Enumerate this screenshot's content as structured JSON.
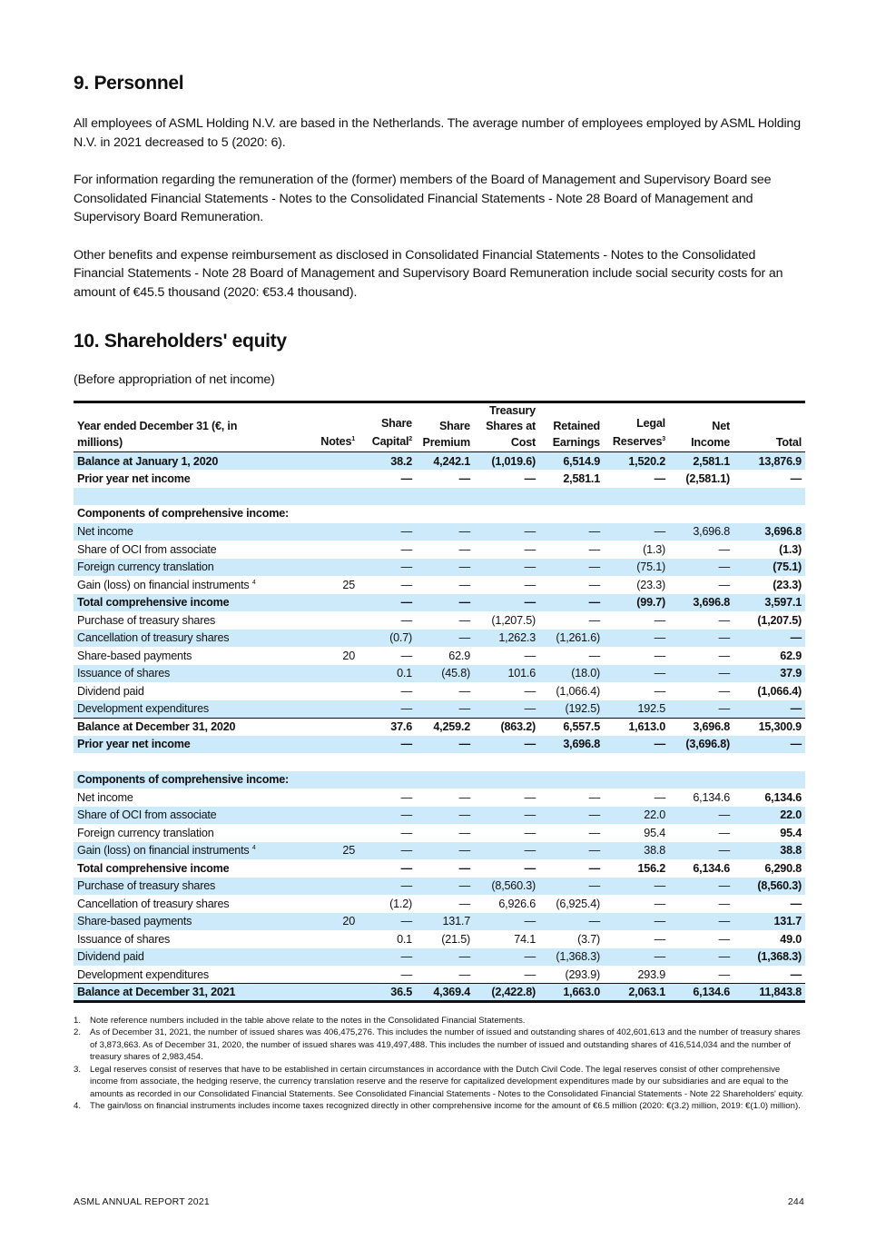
{
  "section9": {
    "title": "9. Personnel",
    "paragraphs": [
      "All employees of ASML Holding N.V. are based in the Netherlands. The average number of employees employed by ASML Holding N.V. in 2021 decreased to 5 (2020: 6).",
      "For information regarding the remuneration of the (former) members of the Board of Management and Supervisory Board see Consolidated Financial Statements - Notes to the Consolidated Financial Statements - Note 28 Board of Management and Supervisory Board Remuneration.",
      "Other benefits and expense reimbursement as disclosed in Consolidated Financial Statements - Notes to the Consolidated Financial Statements - Note 28 Board of Management and Supervisory Board Remuneration include social security costs for an amount of €45.5 thousand (2020: €53.4 thousand)."
    ]
  },
  "section10": {
    "title": "10. Shareholders' equity",
    "subtitle": "(Before appropriation of net income)"
  },
  "table": {
    "headers": {
      "label": "Year ended December 31 (€, in millions)",
      "notes": "Notes",
      "notes_sup": "1",
      "share_capital": "Share Capital",
      "share_capital_sup": "2",
      "share_premium": "Share Premium",
      "treasury": "Treasury Shares at Cost",
      "retained": "Retained Earnings",
      "legal": "Legal Reserves",
      "legal_sup": "3",
      "net_income": "Net Income",
      "total": "Total"
    },
    "rows": [
      {
        "type": "b",
        "label": "Balance at January 1, 2020",
        "notes": "",
        "cells": [
          "38.2",
          "4,242.1",
          "(1,019.6)",
          "6,514.9",
          "1,520.2",
          "2,581.1",
          "13,876.9"
        ]
      },
      {
        "type": "b",
        "label": "Prior year net income",
        "notes": "",
        "cells": [
          "—",
          "—",
          "—",
          "2,581.1",
          "—",
          "(2,581.1)",
          "—"
        ]
      },
      {
        "type": "blank",
        "label": "",
        "notes": "",
        "cells": [
          "",
          "",
          "",
          "",
          "",
          "",
          ""
        ]
      },
      {
        "type": "h",
        "label": "Components of comprehensive income:",
        "notes": "",
        "cells": [
          "",
          "",
          "",
          "",
          "",
          "",
          ""
        ]
      },
      {
        "type": "n",
        "label": "Net income",
        "notes": "",
        "cells": [
          "—",
          "—",
          "—",
          "—",
          "—",
          "3,696.8",
          "3,696.8"
        ]
      },
      {
        "type": "n",
        "label": "Share of OCI from associate",
        "notes": "",
        "cells": [
          "—",
          "—",
          "—",
          "—",
          "(1.3)",
          "—",
          "(1.3)"
        ]
      },
      {
        "type": "n",
        "label": "Foreign currency translation",
        "notes": "",
        "cells": [
          "—",
          "—",
          "—",
          "—",
          "(75.1)",
          "—",
          "(75.1)"
        ]
      },
      {
        "type": "n",
        "label": "Gain (loss) on financial instruments",
        "sup": "4",
        "notes": "25",
        "cells": [
          "—",
          "—",
          "—",
          "—",
          "(23.3)",
          "—",
          "(23.3)"
        ]
      },
      {
        "type": "b",
        "label": "Total comprehensive income",
        "notes": "",
        "cells": [
          "—",
          "—",
          "—",
          "—",
          "(99.7)",
          "3,696.8",
          "3,597.1"
        ]
      },
      {
        "type": "n",
        "label": "Purchase of treasury shares",
        "notes": "",
        "cells": [
          "—",
          "—",
          "(1,207.5)",
          "—",
          "—",
          "—",
          "(1,207.5)"
        ]
      },
      {
        "type": "n",
        "label": "Cancellation of treasury shares",
        "notes": "",
        "cells": [
          "(0.7)",
          "—",
          "1,262.3",
          "(1,261.6)",
          "—",
          "—",
          "—"
        ]
      },
      {
        "type": "n",
        "label": "Share-based payments",
        "notes": "20",
        "cells": [
          "—",
          "62.9",
          "—",
          "—",
          "—",
          "—",
          "62.9"
        ]
      },
      {
        "type": "n",
        "label": "Issuance of shares",
        "notes": "",
        "cells": [
          "0.1",
          "(45.8)",
          "101.6",
          "(18.0)",
          "—",
          "—",
          "37.9"
        ]
      },
      {
        "type": "n",
        "label": "Dividend paid",
        "notes": "",
        "cells": [
          "—",
          "—",
          "—",
          "(1,066.4)",
          "—",
          "—",
          "(1,066.4)"
        ]
      },
      {
        "type": "n",
        "label": "Development expenditures",
        "notes": "",
        "cells": [
          "—",
          "—",
          "—",
          "(192.5)",
          "192.5",
          "—",
          "—"
        ]
      },
      {
        "type": "b top",
        "label": "Balance at December 31, 2020",
        "notes": "",
        "cells": [
          "37.6",
          "4,259.2",
          "(863.2)",
          "6,557.5",
          "1,613.0",
          "3,696.8",
          "15,300.9"
        ]
      },
      {
        "type": "b",
        "label": "Prior year net income",
        "notes": "",
        "cells": [
          "—",
          "—",
          "—",
          "3,696.8",
          "—",
          "(3,696.8)",
          "—"
        ]
      },
      {
        "type": "blank",
        "label": "",
        "notes": "",
        "cells": [
          "",
          "",
          "",
          "",
          "",
          "",
          ""
        ]
      },
      {
        "type": "h",
        "label": "Components of comprehensive income:",
        "notes": "",
        "cells": [
          "",
          "",
          "",
          "",
          "",
          "",
          ""
        ]
      },
      {
        "type": "n",
        "label": "Net income",
        "notes": "",
        "cells": [
          "—",
          "—",
          "—",
          "—",
          "—",
          "6,134.6",
          "6,134.6"
        ]
      },
      {
        "type": "n",
        "label": "Share of OCI from associate",
        "notes": "",
        "cells": [
          "—",
          "—",
          "—",
          "—",
          "22.0",
          "—",
          "22.0"
        ]
      },
      {
        "type": "n",
        "label": "Foreign currency translation",
        "notes": "",
        "cells": [
          "—",
          "—",
          "—",
          "—",
          "95.4",
          "—",
          "95.4"
        ]
      },
      {
        "type": "n",
        "label": "Gain (loss) on financial instruments",
        "sup": "4",
        "notes": "25",
        "cells": [
          "—",
          "—",
          "—",
          "—",
          "38.8",
          "—",
          "38.8"
        ]
      },
      {
        "type": "b",
        "label": "Total comprehensive income",
        "notes": "",
        "cells": [
          "—",
          "—",
          "—",
          "—",
          "156.2",
          "6,134.6",
          "6,290.8"
        ]
      },
      {
        "type": "n",
        "label": "Purchase of treasury shares",
        "notes": "",
        "cells": [
          "—",
          "—",
          "(8,560.3)",
          "—",
          "—",
          "—",
          "(8,560.3)"
        ]
      },
      {
        "type": "n",
        "label": "Cancellation of treasury shares",
        "notes": "",
        "cells": [
          "(1.2)",
          "—",
          "6,926.6",
          "(6,925.4)",
          "—",
          "—",
          "—"
        ]
      },
      {
        "type": "n",
        "label": "Share-based payments",
        "notes": "20",
        "cells": [
          "—",
          "131.7",
          "—",
          "—",
          "—",
          "—",
          "131.7"
        ]
      },
      {
        "type": "n",
        "label": "Issuance of shares",
        "notes": "",
        "cells": [
          "0.1",
          "(21.5)",
          "74.1",
          "(3.7)",
          "—",
          "—",
          "49.0"
        ]
      },
      {
        "type": "n",
        "label": "Dividend paid",
        "notes": "",
        "cells": [
          "—",
          "—",
          "—",
          "(1,368.3)",
          "—",
          "—",
          "(1,368.3)"
        ]
      },
      {
        "type": "n",
        "label": "Development expenditures",
        "notes": "",
        "cells": [
          "—",
          "—",
          "—",
          "(293.9)",
          "293.9",
          "—",
          "—"
        ]
      },
      {
        "type": "b top end",
        "label": "Balance at December 31, 2021",
        "notes": "",
        "cells": [
          "36.5",
          "4,369.4",
          "(2,422.8)",
          "1,663.0",
          "2,063.1",
          "6,134.6",
          "11,843.8"
        ]
      }
    ]
  },
  "footnotes": [
    {
      "n": "1.",
      "text": "Note reference numbers included in the table above relate to the notes in the Consolidated Financial Statements."
    },
    {
      "n": "2.",
      "text": "As of December 31, 2021, the number of issued shares was 406,475,276. This includes the number of issued and outstanding shares of 402,601,613 and the number of treasury shares of 3,873,663. As of December 31, 2020, the number of issued shares was 419,497,488. This includes the number of issued and outstanding shares of 416,514,034 and the number of treasury shares of 2,983,454."
    },
    {
      "n": "3.",
      "text": "Legal reserves consist of reserves that have to be established in certain circumstances in accordance with the Dutch Civil Code. The legal reserves consist of other comprehensive income from associate, the hedging reserve, the currency translation reserve and the reserve for capitalized development expenditures made by our subsidiaries and are equal to the amounts as recorded in our Consolidated Financial Statements. See Consolidated Financial Statements - Notes to the Consolidated Financial Statements - Note 22 Shareholders' equity."
    },
    {
      "n": "4.",
      "text": "The gain/loss on financial instruments includes income taxes recognized directly in other comprehensive income for the amount of €6.5 million (2020: €(3.2) million, 2019: €(1.0) million)."
    }
  ],
  "footer": {
    "left": "ASML ANNUAL REPORT 2021",
    "right": "244"
  }
}
